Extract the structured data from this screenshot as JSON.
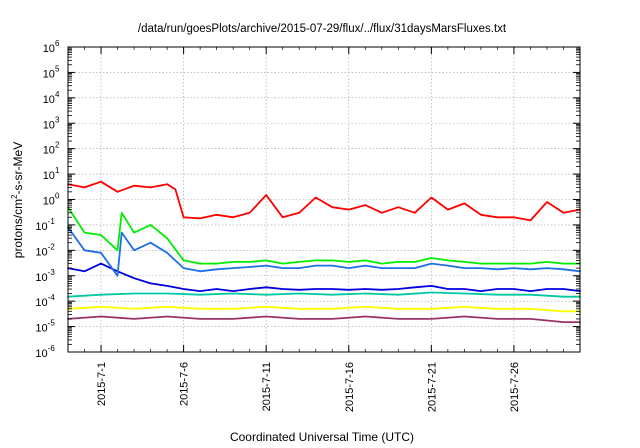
{
  "chart_data": {
    "type": "line",
    "title": "/data/run/goesPlots/archive/2015-07-29/flux/../flux/31daysMarsFluxes.txt",
    "xlabel": "Coordinated Universal Time (UTC)",
    "ylabel": "protons/cm²-s-sr-MeV",
    "ylabel_parts": {
      "base": "protons/cm",
      "sup": "2",
      "rest": "-s-sr-MeV"
    },
    "yscale": "log",
    "ylim": [
      1e-06,
      1000000.0
    ],
    "y_ticks": [
      {
        "base": "10",
        "exp": "-6"
      },
      {
        "base": "10",
        "exp": "-5"
      },
      {
        "base": "10",
        "exp": "-4"
      },
      {
        "base": "10",
        "exp": "-3"
      },
      {
        "base": "10",
        "exp": "-2"
      },
      {
        "base": "10",
        "exp": "-1"
      },
      {
        "base": "10",
        "exp": "0"
      },
      {
        "base": "10",
        "exp": "1"
      },
      {
        "base": "10",
        "exp": "2"
      },
      {
        "base": "10",
        "exp": "3"
      },
      {
        "base": "10",
        "exp": "4"
      },
      {
        "base": "10",
        "exp": "5"
      },
      {
        "base": "10",
        "exp": "6"
      }
    ],
    "xlim": [
      "2015-06-29",
      "2015-07-30"
    ],
    "x_ticks": [
      "2015-7-1",
      "2015-7-6",
      "2015-7-11",
      "2015-7-16",
      "2015-7-21",
      "2015-7-26"
    ],
    "grid": true,
    "legend": "none",
    "series": [
      {
        "color": "#ff0000",
        "points": [
          [
            "2015-06-29",
            4
          ],
          [
            "2015-06-30",
            3
          ],
          [
            "2015-07-01",
            5
          ],
          [
            "2015-07-02",
            2
          ],
          [
            "2015-07-03",
            3.5
          ],
          [
            "2015-07-04",
            3
          ],
          [
            "2015-07-05",
            4
          ],
          [
            "2015-07-05T12",
            2.5
          ],
          [
            "2015-07-06",
            0.2
          ],
          [
            "2015-07-07",
            0.18
          ],
          [
            "2015-07-08",
            0.25
          ],
          [
            "2015-07-09",
            0.2
          ],
          [
            "2015-07-10",
            0.3
          ],
          [
            "2015-07-11",
            1.5
          ],
          [
            "2015-07-12",
            0.2
          ],
          [
            "2015-07-13",
            0.3
          ],
          [
            "2015-07-14",
            1.2
          ],
          [
            "2015-07-15",
            0.5
          ],
          [
            "2015-07-16",
            0.4
          ],
          [
            "2015-07-17",
            0.6
          ],
          [
            "2015-07-18",
            0.3
          ],
          [
            "2015-07-19",
            0.5
          ],
          [
            "2015-07-20",
            0.3
          ],
          [
            "2015-07-21",
            1.2
          ],
          [
            "2015-07-22",
            0.4
          ],
          [
            "2015-07-23",
            0.7
          ],
          [
            "2015-07-24",
            0.25
          ],
          [
            "2015-07-25",
            0.2
          ],
          [
            "2015-07-26",
            0.2
          ],
          [
            "2015-07-27",
            0.15
          ],
          [
            "2015-07-28",
            0.8
          ],
          [
            "2015-07-29",
            0.3
          ],
          [
            "2015-07-30",
            0.4
          ]
        ]
      },
      {
        "color": "#00ee00",
        "points": [
          [
            "2015-06-29",
            0.5
          ],
          [
            "2015-06-30",
            0.05
          ],
          [
            "2015-07-01",
            0.04
          ],
          [
            "2015-07-02",
            0.01
          ],
          [
            "2015-07-02T06",
            0.3
          ],
          [
            "2015-07-03",
            0.05
          ],
          [
            "2015-07-04",
            0.1
          ],
          [
            "2015-07-05",
            0.03
          ],
          [
            "2015-07-06",
            0.004
          ],
          [
            "2015-07-07",
            0.003
          ],
          [
            "2015-07-08",
            0.003
          ],
          [
            "2015-07-09",
            0.0035
          ],
          [
            "2015-07-10",
            0.0035
          ],
          [
            "2015-07-11",
            0.004
          ],
          [
            "2015-07-12",
            0.003
          ],
          [
            "2015-07-13",
            0.0035
          ],
          [
            "2015-07-14",
            0.004
          ],
          [
            "2015-07-15",
            0.004
          ],
          [
            "2015-07-16",
            0.0035
          ],
          [
            "2015-07-17",
            0.004
          ],
          [
            "2015-07-18",
            0.003
          ],
          [
            "2015-07-19",
            0.0035
          ],
          [
            "2015-07-20",
            0.0035
          ],
          [
            "2015-07-21",
            0.005
          ],
          [
            "2015-07-22",
            0.004
          ],
          [
            "2015-07-23",
            0.0035
          ],
          [
            "2015-07-24",
            0.003
          ],
          [
            "2015-07-25",
            0.003
          ],
          [
            "2015-07-26",
            0.003
          ],
          [
            "2015-07-27",
            0.003
          ],
          [
            "2015-07-28",
            0.0035
          ],
          [
            "2015-07-29",
            0.003
          ],
          [
            "2015-07-30",
            0.003
          ]
        ]
      },
      {
        "color": "#1e6fe6",
        "points": [
          [
            "2015-06-29",
            0.08
          ],
          [
            "2015-06-30",
            0.01
          ],
          [
            "2015-07-01",
            0.008
          ],
          [
            "2015-07-02",
            0.001
          ],
          [
            "2015-07-02T06",
            0.05
          ],
          [
            "2015-07-03",
            0.01
          ],
          [
            "2015-07-04",
            0.02
          ],
          [
            "2015-07-05",
            0.008
          ],
          [
            "2015-07-06",
            0.002
          ],
          [
            "2015-07-07",
            0.0015
          ],
          [
            "2015-07-08",
            0.0018
          ],
          [
            "2015-07-09",
            0.002
          ],
          [
            "2015-07-10",
            0.0022
          ],
          [
            "2015-07-11",
            0.0025
          ],
          [
            "2015-07-12",
            0.002
          ],
          [
            "2015-07-13",
            0.002
          ],
          [
            "2015-07-14",
            0.0025
          ],
          [
            "2015-07-15",
            0.0025
          ],
          [
            "2015-07-16",
            0.002
          ],
          [
            "2015-07-17",
            0.0025
          ],
          [
            "2015-07-18",
            0.002
          ],
          [
            "2015-07-19",
            0.002
          ],
          [
            "2015-07-20",
            0.002
          ],
          [
            "2015-07-21",
            0.003
          ],
          [
            "2015-07-22",
            0.0025
          ],
          [
            "2015-07-23",
            0.002
          ],
          [
            "2015-07-24",
            0.002
          ],
          [
            "2015-07-25",
            0.0018
          ],
          [
            "2015-07-26",
            0.002
          ],
          [
            "2015-07-27",
            0.0018
          ],
          [
            "2015-07-28",
            0.002
          ],
          [
            "2015-07-29",
            0.0018
          ],
          [
            "2015-07-30",
            0.0015
          ]
        ]
      },
      {
        "color": "#0000dd",
        "points": [
          [
            "2015-06-29",
            0.002
          ],
          [
            "2015-06-30",
            0.0015
          ],
          [
            "2015-07-01",
            0.003
          ],
          [
            "2015-07-02",
            0.0015
          ],
          [
            "2015-07-03",
            0.0008
          ],
          [
            "2015-07-04",
            0.0005
          ],
          [
            "2015-07-05",
            0.0004
          ],
          [
            "2015-07-06",
            0.0003
          ],
          [
            "2015-07-07",
            0.00025
          ],
          [
            "2015-07-08",
            0.0003
          ],
          [
            "2015-07-09",
            0.00025
          ],
          [
            "2015-07-10",
            0.0003
          ],
          [
            "2015-07-11",
            0.00035
          ],
          [
            "2015-07-12",
            0.0003
          ],
          [
            "2015-07-13",
            0.00028
          ],
          [
            "2015-07-14",
            0.0003
          ],
          [
            "2015-07-15",
            0.0003
          ],
          [
            "2015-07-16",
            0.00028
          ],
          [
            "2015-07-17",
            0.0003
          ],
          [
            "2015-07-18",
            0.00028
          ],
          [
            "2015-07-19",
            0.0003
          ],
          [
            "2015-07-20",
            0.00035
          ],
          [
            "2015-07-21",
            0.0004
          ],
          [
            "2015-07-22",
            0.0003
          ],
          [
            "2015-07-23",
            0.0003
          ],
          [
            "2015-07-24",
            0.00025
          ],
          [
            "2015-07-25",
            0.0003
          ],
          [
            "2015-07-26",
            0.0003
          ],
          [
            "2015-07-27",
            0.00025
          ],
          [
            "2015-07-28",
            0.0003
          ],
          [
            "2015-07-29",
            0.0003
          ],
          [
            "2015-07-30",
            0.00025
          ]
        ]
      },
      {
        "color": "#00c8a0",
        "points": [
          [
            "2015-06-29",
            0.00015
          ],
          [
            "2015-07-01",
            0.00018
          ],
          [
            "2015-07-03",
            0.0002
          ],
          [
            "2015-07-05",
            0.0002
          ],
          [
            "2015-07-07",
            0.00018
          ],
          [
            "2015-07-09",
            0.0002
          ],
          [
            "2015-07-11",
            0.00018
          ],
          [
            "2015-07-13",
            0.0002
          ],
          [
            "2015-07-15",
            0.00018
          ],
          [
            "2015-07-17",
            0.0002
          ],
          [
            "2015-07-19",
            0.00018
          ],
          [
            "2015-07-21",
            0.00022
          ],
          [
            "2015-07-23",
            0.0002
          ],
          [
            "2015-07-25",
            0.00018
          ],
          [
            "2015-07-27",
            0.00018
          ],
          [
            "2015-07-29",
            0.00015
          ],
          [
            "2015-07-30",
            0.00015
          ]
        ]
      },
      {
        "color": "#ffff00",
        "points": [
          [
            "2015-06-29",
            5e-05
          ],
          [
            "2015-07-01",
            6e-05
          ],
          [
            "2015-07-03",
            5e-05
          ],
          [
            "2015-07-05",
            6e-05
          ],
          [
            "2015-07-07",
            5e-05
          ],
          [
            "2015-07-09",
            5e-05
          ],
          [
            "2015-07-11",
            6e-05
          ],
          [
            "2015-07-13",
            5e-05
          ],
          [
            "2015-07-15",
            5e-05
          ],
          [
            "2015-07-17",
            6e-05
          ],
          [
            "2015-07-19",
            5e-05
          ],
          [
            "2015-07-21",
            5e-05
          ],
          [
            "2015-07-23",
            6e-05
          ],
          [
            "2015-07-25",
            5e-05
          ],
          [
            "2015-07-27",
            5e-05
          ],
          [
            "2015-07-29",
            4e-05
          ],
          [
            "2015-07-30",
            4e-05
          ]
        ]
      },
      {
        "color": "#993366",
        "points": [
          [
            "2015-06-29",
            2e-05
          ],
          [
            "2015-07-01",
            2.5e-05
          ],
          [
            "2015-07-03",
            2e-05
          ],
          [
            "2015-07-05",
            2.5e-05
          ],
          [
            "2015-07-07",
            2e-05
          ],
          [
            "2015-07-09",
            2e-05
          ],
          [
            "2015-07-11",
            2.5e-05
          ],
          [
            "2015-07-13",
            2e-05
          ],
          [
            "2015-07-15",
            2e-05
          ],
          [
            "2015-07-17",
            2.5e-05
          ],
          [
            "2015-07-19",
            2e-05
          ],
          [
            "2015-07-21",
            2e-05
          ],
          [
            "2015-07-23",
            2.5e-05
          ],
          [
            "2015-07-25",
            2e-05
          ],
          [
            "2015-07-27",
            2e-05
          ],
          [
            "2015-07-29",
            1.5e-05
          ],
          [
            "2015-07-30",
            1.5e-05
          ]
        ]
      }
    ]
  }
}
